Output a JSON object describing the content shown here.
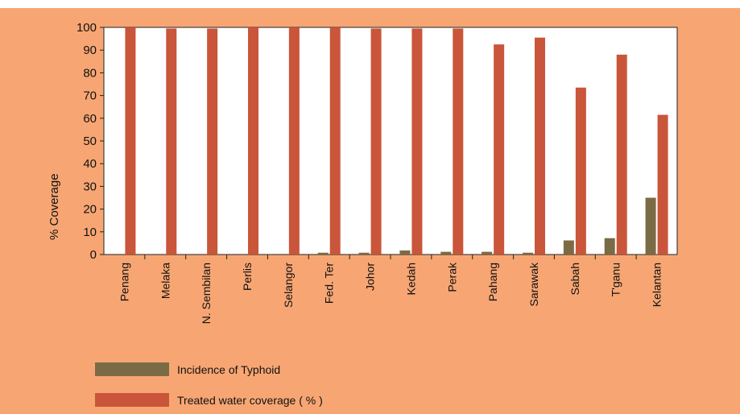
{
  "chart_data": {
    "type": "bar",
    "title": "",
    "xlabel": "",
    "ylabel": "% Coverage",
    "ylim": [
      0,
      100
    ],
    "yticks": [
      0,
      10,
      20,
      30,
      40,
      50,
      60,
      70,
      80,
      90,
      100
    ],
    "grid": false,
    "legend_position": "bottom-left",
    "categories": [
      "Penang",
      "Melaka",
      "N. Sembilan",
      "Perlis",
      "Selangor",
      "Fed. Ter",
      "Johor",
      "Kedah",
      "Perak",
      "Pahang",
      "Sarawak",
      "Sabah",
      "T'ganu",
      "Kelantan"
    ],
    "series": [
      {
        "name": "Incidence of Typhoid",
        "color": "#7B6B45",
        "values": [
          0,
          0,
          0,
          0,
          0,
          0.8,
          0.8,
          1.8,
          1.2,
          1.2,
          0.8,
          6.2,
          7.2,
          25
        ]
      },
      {
        "name": "Treated water coverage ( % )",
        "color": "#C9553A",
        "values": [
          100,
          99.5,
          99.5,
          100,
          100,
          100,
          99.5,
          99.5,
          99.5,
          92.5,
          95.5,
          73.5,
          88,
          61.5
        ]
      }
    ]
  },
  "colors": {
    "background": "#F7A673",
    "plot_background": "#FFFFFF"
  }
}
